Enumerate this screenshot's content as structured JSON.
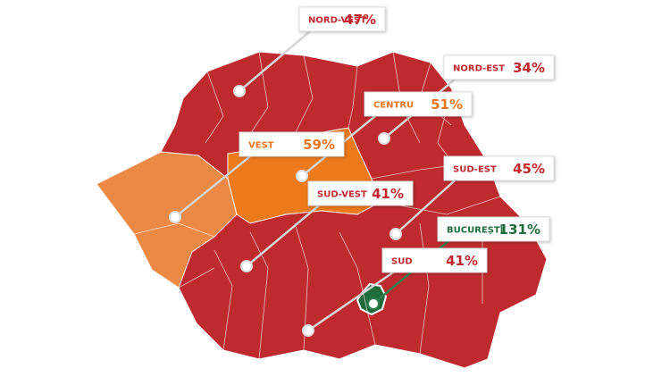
{
  "regions": [
    {
      "name": "NORD-VEST",
      "value": "47%",
      "color": "#c1272d"
    },
    {
      "name": "NORD-EST",
      "value": "34%",
      "color": "#c1272d"
    },
    {
      "name": "CENTRU",
      "value": "51%",
      "color": "#e8761c"
    },
    {
      "name": "VEST",
      "value": "59%",
      "color": "#e8761c"
    },
    {
      "name": "SUD-EST",
      "value": "45%",
      "color": "#c1272d"
    },
    {
      "name": "SUD-VEST",
      "value": "41%",
      "color": "#c1272d"
    },
    {
      "name": "BUCUREȘTI",
      "value": "131%",
      "color": "#1e6b3b"
    },
    {
      "name": "SUD",
      "value": "41%",
      "color": "#c1272d"
    }
  ]
}
